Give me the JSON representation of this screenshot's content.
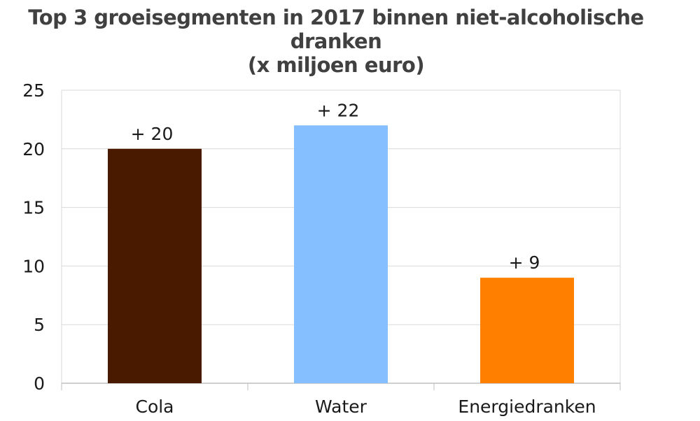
{
  "chart_data": {
    "type": "bar",
    "title": "Top 3 groeisegmenten in 2017 binnen niet-alcoholische dranken",
    "subtitle": "(x miljoen euro)",
    "categories": [
      "Cola",
      "Water",
      "Energiedranken"
    ],
    "values": [
      20,
      22,
      9
    ],
    "data_labels": [
      "+ 20",
      "+ 22",
      "+ 9"
    ],
    "colors": [
      "#4a1a00",
      "#85bfff",
      "#ff8000"
    ],
    "ylim": [
      0,
      25
    ],
    "yticks": [
      0,
      5,
      10,
      15,
      20,
      25
    ],
    "grid": true,
    "legend": "none",
    "xlabel": "",
    "ylabel": ""
  }
}
